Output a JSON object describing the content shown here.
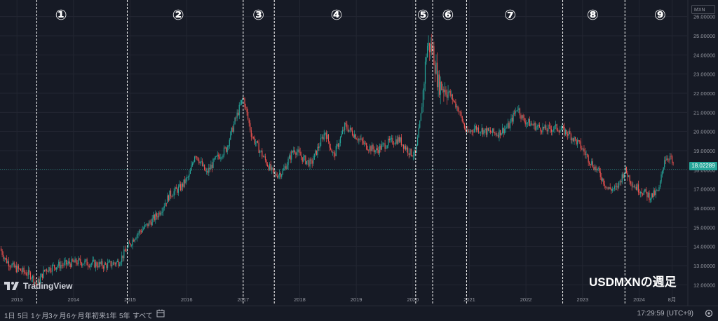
{
  "chart_data": {
    "type": "candlestick",
    "symbol": "USDMXN",
    "watermark": "USDMXNの週足",
    "current_price": 18.02289,
    "current_price_label": "18.02289",
    "ylim": [
      11.5,
      26.5
    ],
    "y_ticks": [
      "12.00000",
      "13.00000",
      "14.00000",
      "15.00000",
      "16.00000",
      "17.00000",
      "18.00000",
      "19.00000",
      "20.00000",
      "21.00000",
      "22.00000",
      "23.00000",
      "24.00000",
      "25.00000",
      "26.00000"
    ],
    "y_tick_values": [
      12,
      13,
      14,
      15,
      16,
      17,
      18,
      19,
      20,
      21,
      22,
      23,
      24,
      25,
      26
    ],
    "x_ticks": [
      "2013",
      "2014",
      "2015",
      "2016",
      "2017",
      "2018",
      "2019",
      "2020",
      "2021",
      "2022",
      "2023",
      "2024",
      "8月"
    ],
    "x_tick_years": [
      2013,
      2014,
      2015,
      2016,
      2017,
      2018,
      2019,
      2020,
      2021,
      2022,
      2023,
      2024,
      2024.583
    ],
    "xlim": [
      2012.7,
      2024.85
    ],
    "price_path": [
      [
        2012.7,
        13.9
      ],
      [
        2012.8,
        13.3
      ],
      [
        2012.95,
        12.9
      ],
      [
        2013.1,
        12.7
      ],
      [
        2013.25,
        12.5
      ],
      [
        2013.35,
        12.0
      ],
      [
        2013.5,
        12.8
      ],
      [
        2013.7,
        13.0
      ],
      [
        2013.9,
        13.1
      ],
      [
        2014.1,
        13.2
      ],
      [
        2014.35,
        13.1
      ],
      [
        2014.55,
        13.0
      ],
      [
        2014.8,
        13.2
      ],
      [
        2014.95,
        13.9
      ],
      [
        2015.1,
        14.6
      ],
      [
        2015.3,
        15.1
      ],
      [
        2015.5,
        15.7
      ],
      [
        2015.7,
        16.7
      ],
      [
        2015.9,
        17.1
      ],
      [
        2016.05,
        17.7
      ],
      [
        2016.15,
        18.9
      ],
      [
        2016.35,
        17.8
      ],
      [
        2016.5,
        18.5
      ],
      [
        2016.7,
        19.1
      ],
      [
        2016.85,
        20.5
      ],
      [
        2017.0,
        21.8
      ],
      [
        2017.15,
        19.8
      ],
      [
        2017.35,
        18.7
      ],
      [
        2017.55,
        17.7
      ],
      [
        2017.7,
        17.9
      ],
      [
        2017.9,
        19.1
      ],
      [
        2018.05,
        18.6
      ],
      [
        2018.2,
        18.3
      ],
      [
        2018.45,
        20.0
      ],
      [
        2018.6,
        18.7
      ],
      [
        2018.8,
        20.3
      ],
      [
        2018.95,
        19.9
      ],
      [
        2019.15,
        19.3
      ],
      [
        2019.35,
        19.0
      ],
      [
        2019.55,
        19.4
      ],
      [
        2019.75,
        19.6
      ],
      [
        2019.95,
        18.9
      ],
      [
        2020.05,
        18.8
      ],
      [
        2020.15,
        21.0
      ],
      [
        2020.25,
        24.5
      ],
      [
        2020.35,
        24.3
      ],
      [
        2020.45,
        22.5
      ],
      [
        2020.6,
        22.2
      ],
      [
        2020.8,
        21.2
      ],
      [
        2020.95,
        19.9
      ],
      [
        2021.1,
        20.2
      ],
      [
        2021.3,
        20.0
      ],
      [
        2021.5,
        19.9
      ],
      [
        2021.7,
        20.3
      ],
      [
        2021.85,
        21.3
      ],
      [
        2021.95,
        20.6
      ],
      [
        2022.15,
        20.3
      ],
      [
        2022.35,
        20.1
      ],
      [
        2022.55,
        20.2
      ],
      [
        2022.75,
        19.9
      ],
      [
        2022.95,
        19.3
      ],
      [
        2023.1,
        18.6
      ],
      [
        2023.3,
        17.8
      ],
      [
        2023.45,
        17.0
      ],
      [
        2023.6,
        17.0
      ],
      [
        2023.75,
        18.0
      ],
      [
        2023.9,
        17.2
      ],
      [
        2024.05,
        16.9
      ],
      [
        2024.2,
        16.6
      ],
      [
        2024.35,
        16.9
      ],
      [
        2024.45,
        18.6
      ],
      [
        2024.55,
        18.7
      ],
      [
        2024.62,
        18.0
      ]
    ],
    "phase_labels": [
      "①",
      "②",
      "③",
      "④",
      "⑤",
      "⑥",
      "⑦",
      "⑧",
      "⑨"
    ],
    "phase_boundaries": [
      2013.35,
      2014.95,
      2017.0,
      2017.55,
      2020.05,
      2020.35,
      2020.95,
      2022.65,
      2023.75
    ],
    "phase_centers": [
      2013.78,
      2015.85,
      2017.27,
      2018.65,
      2020.18,
      2020.62,
      2021.72,
      2023.18,
      2024.37
    ],
    "grid": true,
    "colors": {
      "up": "#26a69a",
      "down": "#ef5350",
      "background": "#161a25",
      "grid": "#232632",
      "divider": "#ffffff"
    }
  },
  "toolbar": {
    "ranges": [
      "1日",
      "5日",
      "1ヶ月",
      "3ヶ月",
      "6ヶ月",
      "年初来",
      "1年",
      "5年",
      "すべて"
    ],
    "clock": "17:29:59 (UTC+9)"
  },
  "logo_text": "TradingView",
  "symbol_box": "MXN"
}
